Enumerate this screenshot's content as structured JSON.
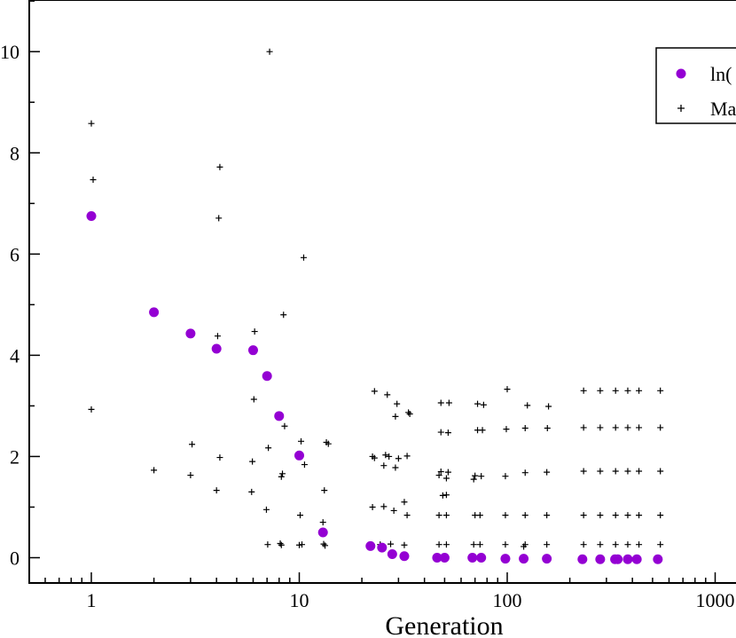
{
  "chart_data": {
    "type": "scatter",
    "xlabel": "Generation",
    "ylabel": "",
    "xscale": "log",
    "xlim": [
      0.5,
      1000
    ],
    "ylim": [
      -0.5,
      11.2
    ],
    "x_major_ticks": [
      1,
      10,
      100,
      1000
    ],
    "x_tick_labels": [
      "1",
      "10",
      "100",
      "1000"
    ],
    "y_major_ticks": [
      0,
      2,
      4,
      6,
      8,
      10
    ],
    "y_tick_labels": [
      "0",
      "2",
      "4",
      "6",
      "8",
      "10"
    ],
    "y_minor_step": 1,
    "grid": false,
    "legend": {
      "position": "top-right",
      "entries": [
        {
          "label": "ln(",
          "marker": "circle",
          "color": "#9400d3"
        },
        {
          "label": "Ma",
          "marker": "plus",
          "color": "#000000"
        }
      ]
    },
    "series": [
      {
        "marker": "circle",
        "color": "#9400d3",
        "points": [
          [
            1,
            6.75
          ],
          [
            2,
            4.85
          ],
          [
            3,
            4.43
          ],
          [
            4,
            4.13
          ],
          [
            6,
            4.1
          ],
          [
            7,
            3.59
          ],
          [
            8,
            2.8
          ],
          [
            10,
            2.02
          ],
          [
            13,
            0.5
          ],
          [
            22,
            0.23
          ],
          [
            25,
            0.2
          ],
          [
            28,
            0.07
          ],
          [
            32,
            0.03
          ],
          [
            46,
            0.0
          ],
          [
            50,
            0.0
          ],
          [
            68,
            0.0
          ],
          [
            75,
            0.0
          ],
          [
            98,
            -0.02
          ],
          [
            120,
            -0.02
          ],
          [
            155,
            -0.02
          ],
          [
            230,
            -0.03
          ],
          [
            280,
            -0.03
          ],
          [
            330,
            -0.03
          ],
          [
            340,
            -0.03
          ],
          [
            380,
            -0.03
          ],
          [
            420,
            -0.03
          ],
          [
            530,
            -0.03
          ]
        ]
      },
      {
        "marker": "plus",
        "color": "#000000",
        "points": [
          [
            1,
            8.58
          ],
          [
            1.02,
            7.47
          ],
          [
            1,
            2.93
          ],
          [
            2,
            1.73
          ],
          [
            3.05,
            2.24
          ],
          [
            3,
            1.63
          ],
          [
            4.15,
            7.72
          ],
          [
            4.1,
            6.71
          ],
          [
            4.05,
            4.38
          ],
          [
            4.15,
            1.98
          ],
          [
            4,
            1.33
          ],
          [
            6.1,
            4.47
          ],
          [
            6.05,
            3.13
          ],
          [
            5.95,
            1.9
          ],
          [
            5.9,
            1.3
          ],
          [
            7.2,
            10.0
          ],
          [
            7.1,
            2.17
          ],
          [
            6.95,
            0.95
          ],
          [
            7.05,
            0.26
          ],
          [
            8.4,
            4.8
          ],
          [
            8.5,
            2.6
          ],
          [
            8.3,
            1.66
          ],
          [
            8.2,
            1.6
          ],
          [
            8.1,
            0.28
          ],
          [
            8.2,
            0.25
          ],
          [
            10.5,
            5.93
          ],
          [
            10.2,
            2.3
          ],
          [
            10.6,
            1.84
          ],
          [
            10.1,
            0.84
          ],
          [
            10.3,
            0.26
          ],
          [
            10,
            0.25
          ],
          [
            13.5,
            2.28
          ],
          [
            13.8,
            2.25
          ],
          [
            13.2,
            1.33
          ],
          [
            13,
            0.7
          ],
          [
            13.1,
            0.27
          ],
          [
            13.3,
            0.24
          ],
          [
            23,
            3.29
          ],
          [
            26.5,
            3.22
          ],
          [
            29.5,
            3.04
          ],
          [
            33.5,
            2.87
          ],
          [
            34,
            2.84
          ],
          [
            29,
            2.79
          ],
          [
            22.5,
            2.0
          ],
          [
            23,
            1.97
          ],
          [
            26,
            2.03
          ],
          [
            27,
            2.0
          ],
          [
            30,
            1.96
          ],
          [
            33,
            2.01
          ],
          [
            25.5,
            1.82
          ],
          [
            29,
            1.78
          ],
          [
            32,
            1.1
          ],
          [
            22.5,
            1.0
          ],
          [
            25.5,
            1.01
          ],
          [
            28.5,
            0.93
          ],
          [
            33,
            0.84
          ],
          [
            22,
            0.26
          ],
          [
            24.5,
            0.26
          ],
          [
            27.5,
            0.27
          ],
          [
            32,
            0.25
          ],
          [
            48,
            3.06
          ],
          [
            52.5,
            3.06
          ],
          [
            48,
            2.48
          ],
          [
            52,
            2.47
          ],
          [
            48,
            1.7
          ],
          [
            52,
            1.69
          ],
          [
            47,
            1.63
          ],
          [
            51,
            1.57
          ],
          [
            49,
            1.23
          ],
          [
            51,
            1.24
          ],
          [
            47,
            0.84
          ],
          [
            51,
            0.84
          ],
          [
            47,
            0.26
          ],
          [
            51,
            0.26
          ],
          [
            72,
            3.04
          ],
          [
            77,
            3.02
          ],
          [
            72,
            2.52
          ],
          [
            76,
            2.52
          ],
          [
            70,
            1.62
          ],
          [
            75,
            1.61
          ],
          [
            69,
            1.55
          ],
          [
            70,
            0.84
          ],
          [
            74,
            0.84
          ],
          [
            69,
            0.26
          ],
          [
            74,
            0.26
          ],
          [
            100,
            3.33
          ],
          [
            99,
            2.54
          ],
          [
            98,
            1.61
          ],
          [
            98,
            0.84
          ],
          [
            98,
            0.26
          ],
          [
            125,
            3.01
          ],
          [
            122,
            2.56
          ],
          [
            122,
            1.68
          ],
          [
            122,
            0.84
          ],
          [
            122,
            0.26
          ],
          [
            120,
            0.22
          ],
          [
            158,
            2.99
          ],
          [
            156,
            2.56
          ],
          [
            155,
            1.69
          ],
          [
            155,
            0.84
          ],
          [
            155,
            0.26
          ],
          [
            233,
            3.3
          ],
          [
            280,
            3.3
          ],
          [
            332,
            3.3
          ],
          [
            380,
            3.3
          ],
          [
            430,
            3.3
          ],
          [
            545,
            3.3
          ],
          [
            233,
            2.57
          ],
          [
            280,
            2.57
          ],
          [
            332,
            2.57
          ],
          [
            380,
            2.57
          ],
          [
            430,
            2.57
          ],
          [
            545,
            2.57
          ],
          [
            233,
            1.71
          ],
          [
            280,
            1.71
          ],
          [
            332,
            1.71
          ],
          [
            380,
            1.71
          ],
          [
            430,
            1.71
          ],
          [
            545,
            1.71
          ],
          [
            233,
            0.84
          ],
          [
            280,
            0.84
          ],
          [
            332,
            0.84
          ],
          [
            380,
            0.84
          ],
          [
            430,
            0.84
          ],
          [
            545,
            0.84
          ],
          [
            233,
            0.26
          ],
          [
            280,
            0.26
          ],
          [
            332,
            0.26
          ],
          [
            380,
            0.26
          ],
          [
            430,
            0.26
          ],
          [
            545,
            0.26
          ]
        ]
      }
    ]
  }
}
